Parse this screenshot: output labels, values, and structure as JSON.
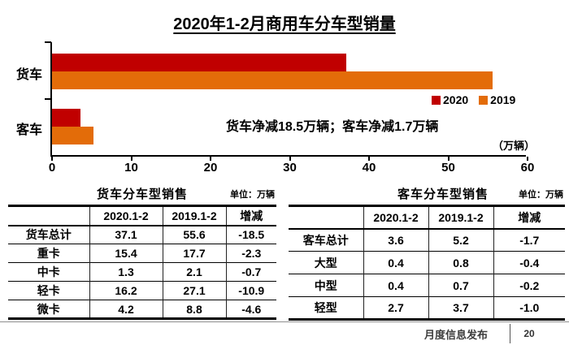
{
  "title": "2020年1-2月商用车分车型销量",
  "chart_data": {
    "type": "bar",
    "orientation": "horizontal",
    "title": "2020年1-2月商用车分车型销量",
    "categories": [
      "货车",
      "客车"
    ],
    "series": [
      {
        "name": "2020",
        "color": "#c00000",
        "values": [
          37.1,
          3.6
        ]
      },
      {
        "name": "2019",
        "color": "#e36c09",
        "values": [
          55.6,
          5.2
        ]
      }
    ],
    "xlim": [
      0,
      60
    ],
    "x_ticks": [
      "0",
      "10",
      "20",
      "30",
      "40",
      "50",
      "60"
    ],
    "unit_label": "（万辆）",
    "annotation": "货车净减18.5万辆；客车净减1.7万辆",
    "legend_position": "right-middle",
    "grid": false
  },
  "tables": {
    "truck": {
      "title": "货车分车型销售",
      "unit": "单位：万辆",
      "columns": [
        "",
        "2020.1-2",
        "2019.1-2",
        "增减"
      ],
      "rows": [
        [
          "货车总计",
          "37.1",
          "55.6",
          "-18.5"
        ],
        [
          "重卡",
          "15.4",
          "17.7",
          "-2.3"
        ],
        [
          "中卡",
          "1.3",
          "2.1",
          "-0.7"
        ],
        [
          "轻卡",
          "16.2",
          "27.1",
          "-10.9"
        ],
        [
          "微卡",
          "4.2",
          "8.8",
          "-4.6"
        ]
      ]
    },
    "bus": {
      "title": "客车分车型销售",
      "unit": "单位：万辆",
      "columns": [
        "",
        "2020.1-2",
        "2019.1-2",
        "增减"
      ],
      "rows": [
        [
          "客车总计",
          "3.6",
          "5.2",
          "-1.7"
        ],
        [
          "大型",
          "0.4",
          "0.8",
          "-0.4"
        ],
        [
          "中型",
          "0.4",
          "0.7",
          "-0.2"
        ],
        [
          "轻型",
          "2.7",
          "3.7",
          "-1.0"
        ]
      ]
    }
  },
  "footer": {
    "label": "月度信息发布",
    "page_number": "20"
  },
  "colors": {
    "series_2020": "#c00000",
    "series_2019": "#e36c09"
  }
}
